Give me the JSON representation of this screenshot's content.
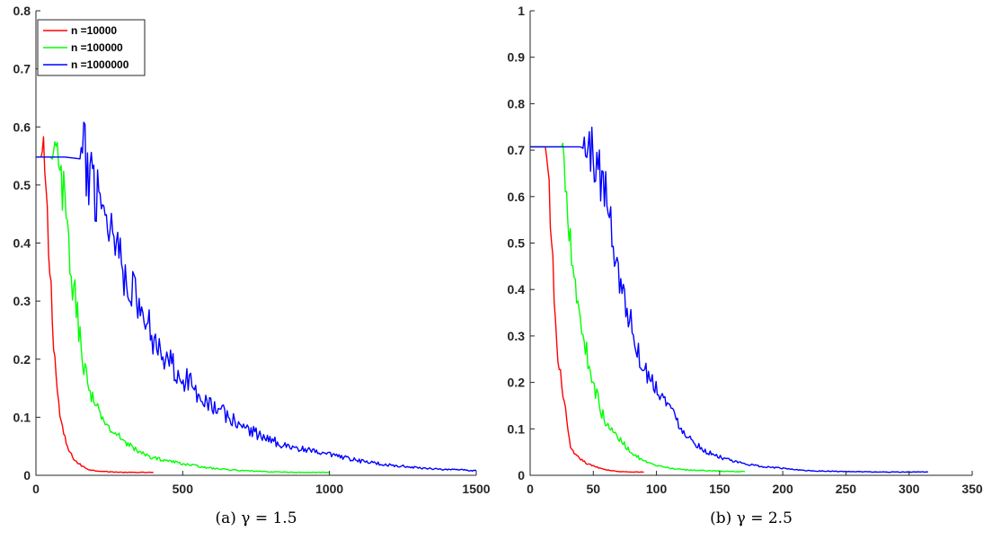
{
  "chart_data": [
    {
      "type": "line",
      "caption": "(a) γ = 1.5",
      "xlim": [
        0,
        1500
      ],
      "ylim": [
        0,
        0.8
      ],
      "xticks": [
        0,
        500,
        1000,
        1500
      ],
      "yticks": [
        0,
        0.1,
        0.2,
        0.3,
        0.4,
        0.5,
        0.6,
        0.7,
        0.8
      ],
      "grid": false,
      "legend": {
        "placement": "top-left",
        "entries": [
          "n =10000",
          "n =100000",
          "n =1000000"
        ]
      },
      "series": [
        {
          "name": "n =10000",
          "color": "#ff0000",
          "noise": 0.1,
          "x": [
            0,
            20,
            30,
            40,
            50,
            60,
            70,
            80,
            90,
            100,
            110,
            120,
            140,
            160,
            180,
            200,
            250,
            300,
            350,
            400
          ],
          "y": [
            0.548,
            0.548,
            0.52,
            0.42,
            0.33,
            0.24,
            0.16,
            0.11,
            0.08,
            0.06,
            0.045,
            0.035,
            0.022,
            0.015,
            0.01,
            0.008,
            0.006,
            0.005,
            0.005,
            0.005
          ]
        },
        {
          "name": "n =100000",
          "color": "#00ff00",
          "noise": 0.11,
          "x": [
            0,
            50,
            80,
            100,
            120,
            140,
            160,
            180,
            200,
            250,
            300,
            350,
            400,
            500,
            600,
            700,
            800,
            900,
            1000
          ],
          "y": [
            0.548,
            0.548,
            0.53,
            0.45,
            0.35,
            0.28,
            0.2,
            0.15,
            0.12,
            0.08,
            0.06,
            0.04,
            0.03,
            0.02,
            0.012,
            0.008,
            0.006,
            0.005,
            0.005
          ]
        },
        {
          "name": "n =1000000",
          "color": "#0000ff",
          "noise": 0.14,
          "x": [
            0,
            100,
            150,
            200,
            250,
            300,
            350,
            400,
            450,
            500,
            600,
            700,
            800,
            900,
            1000,
            1100,
            1200,
            1300,
            1400,
            1500
          ],
          "y": [
            0.548,
            0.548,
            0.545,
            0.51,
            0.44,
            0.36,
            0.29,
            0.24,
            0.2,
            0.17,
            0.12,
            0.085,
            0.06,
            0.045,
            0.035,
            0.025,
            0.018,
            0.013,
            0.01,
            0.008
          ]
        }
      ]
    },
    {
      "type": "line",
      "caption": "(b) γ = 2.5",
      "xlim": [
        0,
        350
      ],
      "ylim": [
        0,
        1
      ],
      "xticks": [
        0,
        50,
        100,
        150,
        200,
        250,
        300,
        350
      ],
      "yticks": [
        0,
        0.1,
        0.2,
        0.3,
        0.4,
        0.5,
        0.6,
        0.7,
        0.8,
        0.9,
        1
      ],
      "grid": false,
      "series": [
        {
          "name": "n =10000",
          "color": "#ff0000",
          "noise": 0.07,
          "x": [
            0,
            12,
            15,
            18,
            20,
            22,
            25,
            28,
            30,
            32,
            35,
            40,
            45,
            50,
            60,
            70,
            80,
            90
          ],
          "y": [
            0.707,
            0.707,
            0.6,
            0.45,
            0.33,
            0.24,
            0.2,
            0.14,
            0.09,
            0.06,
            0.045,
            0.035,
            0.025,
            0.02,
            0.012,
            0.008,
            0.007,
            0.007
          ]
        },
        {
          "name": "n =100000",
          "color": "#00ff00",
          "noise": 0.1,
          "x": [
            0,
            25,
            28,
            30,
            32,
            35,
            40,
            45,
            50,
            55,
            60,
            70,
            80,
            90,
            100,
            120,
            140,
            160,
            170
          ],
          "y": [
            0.707,
            0.707,
            0.65,
            0.58,
            0.52,
            0.43,
            0.33,
            0.26,
            0.2,
            0.15,
            0.11,
            0.08,
            0.05,
            0.03,
            0.02,
            0.012,
            0.01,
            0.008,
            0.008
          ]
        },
        {
          "name": "n =1000000",
          "color": "#0000ff",
          "noise": 0.1,
          "x": [
            0,
            40,
            50,
            55,
            60,
            65,
            70,
            75,
            80,
            85,
            90,
            100,
            110,
            120,
            130,
            140,
            150,
            160,
            180,
            200,
            220,
            250,
            280,
            315
          ],
          "y": [
            0.707,
            0.707,
            0.69,
            0.66,
            0.6,
            0.52,
            0.44,
            0.37,
            0.33,
            0.27,
            0.23,
            0.19,
            0.15,
            0.1,
            0.07,
            0.05,
            0.04,
            0.03,
            0.02,
            0.015,
            0.01,
            0.008,
            0.007,
            0.007
          ]
        }
      ]
    }
  ]
}
